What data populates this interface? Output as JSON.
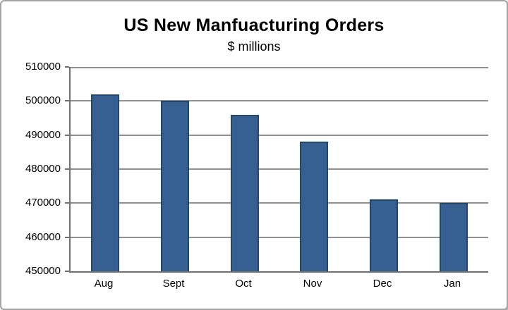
{
  "window": {
    "background": "#ffffff",
    "frame_border_color": "#a3a3a3"
  },
  "chart_data": {
    "type": "bar",
    "title": "US New Manfuacturing Orders",
    "subtitle": "$ millions",
    "categories": [
      "Aug",
      "Sept",
      "Oct",
      "Nov",
      "Dec",
      "Jan"
    ],
    "values": [
      502000,
      500000,
      496000,
      488000,
      471000,
      470000
    ],
    "xlabel": "",
    "ylabel": "",
    "ylim": [
      450000,
      510000
    ],
    "yticks": [
      450000,
      460000,
      470000,
      480000,
      490000,
      500000,
      510000
    ],
    "ytick_labels": [
      "450000",
      "460000",
      "470000",
      "480000",
      "490000",
      "500000",
      "510000"
    ],
    "grid": "horizontal",
    "legend": "none",
    "bar_color": "#366092",
    "bar_border_color": "#24466b",
    "gridline_color": "#909090",
    "axis_color": "#707070",
    "text_color": "#000000"
  }
}
